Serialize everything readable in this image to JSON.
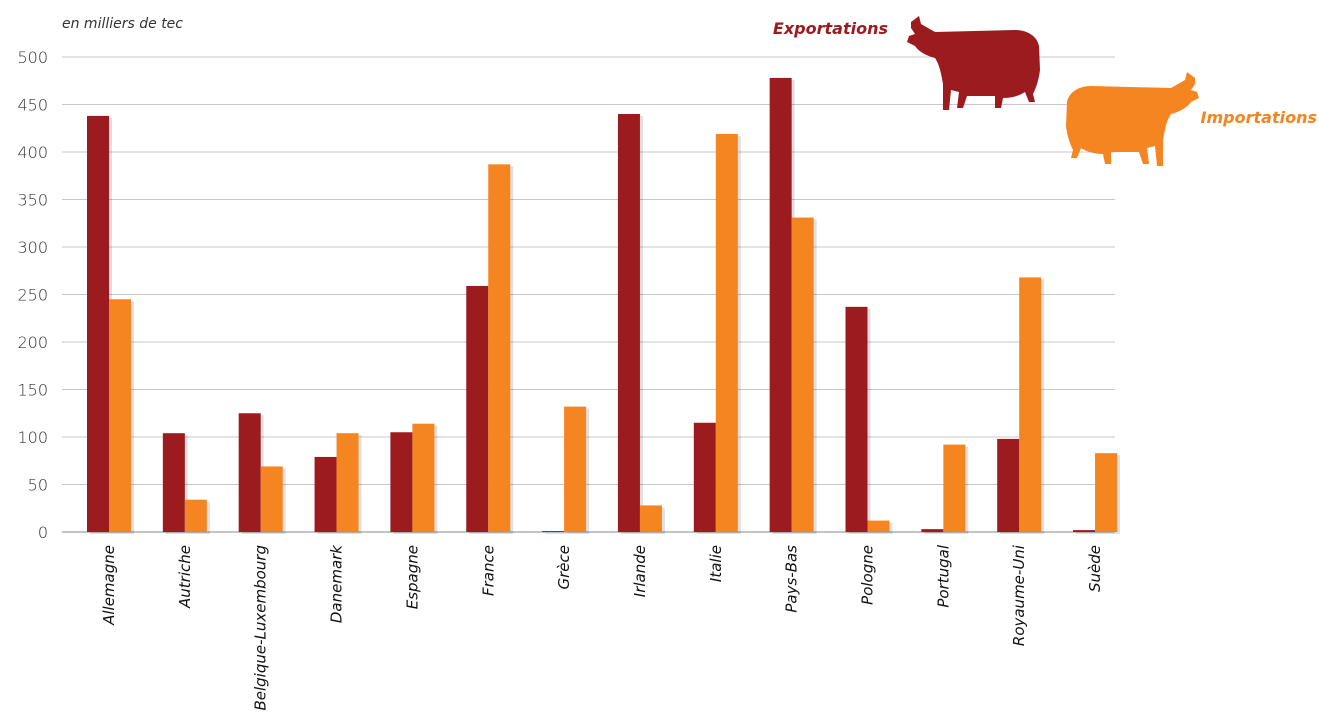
{
  "chart_data": {
    "type": "bar",
    "ylabel": "en milliers de tec",
    "ylim": [
      0,
      500
    ],
    "yticks": [
      0,
      50,
      100,
      150,
      200,
      250,
      300,
      350,
      400,
      450,
      500
    ],
    "grid": true,
    "legend_position": "top-right",
    "categories": [
      "Allemagne",
      "Autriche",
      "Belgique-Luxembourg",
      "Danemark",
      "Espagne",
      "France",
      "Grèce",
      "Irlande",
      "Italie",
      "Pays-Bas",
      "Pologne",
      "Portugal",
      "Royaume-Uni",
      "Suède"
    ],
    "series": [
      {
        "name": "Exportations",
        "color": "#9b1b1f",
        "values": [
          438,
          104,
          125,
          79,
          105,
          259,
          1,
          440,
          115,
          478,
          237,
          3,
          98,
          2
        ]
      },
      {
        "name": "Importations",
        "color": "#f48521",
        "values": [
          245,
          34,
          69,
          104,
          114,
          387,
          132,
          28,
          419,
          331,
          12,
          92,
          268,
          83
        ]
      }
    ]
  }
}
